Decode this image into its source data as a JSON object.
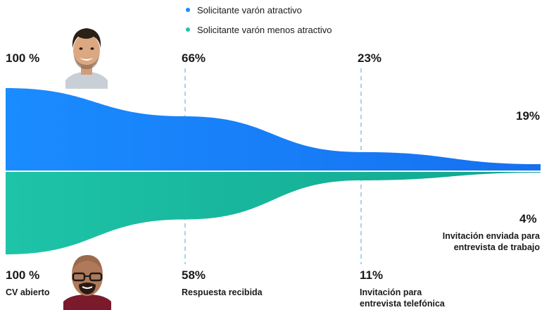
{
  "chart_data": {
    "type": "area",
    "title": "",
    "legend": [
      {
        "label": "Solicitante varón atractivo",
        "color": "#1a8cff"
      },
      {
        "label": "Solicitante varón menos atractivo",
        "color": "#1ec4a8"
      }
    ],
    "stages": [
      "CV abierto",
      "Respuesta recibida",
      "Invitación para entrevista telefónica",
      "Invitación enviada para entrevista de trabajo"
    ],
    "series": [
      {
        "name": "Solicitante varón atractivo",
        "values": [
          100,
          66,
          23,
          19
        ],
        "labels": [
          "100 %",
          "66%",
          "23%",
          "19%"
        ]
      },
      {
        "name": "Solicitante varón menos atractivo",
        "values": [
          100,
          58,
          11,
          4
        ],
        "labels": [
          "100 %",
          "58%",
          "11%",
          "4%"
        ]
      }
    ],
    "layout": "mirrored-funnel",
    "legend_position": "top-center",
    "colors": {
      "attractive": "#1a8cff",
      "attractive_dark": "#1670f0",
      "less": "#1ec4a8",
      "less_dark": "#11a58e",
      "divider": "#6fb6d8"
    }
  },
  "labels": {
    "stage1": "CV abierto",
    "stage2": "Respuesta recibida",
    "stage3_line1": "Invitación para",
    "stage3_line2": "entrevista telefónica",
    "stage4_line1": "Invitación enviada para",
    "stage4_line2": "entrevista de trabajo"
  },
  "icons": {
    "top_photo": "attractive-man-photo-icon",
    "bottom_photo": "less-attractive-man-photo-icon"
  }
}
